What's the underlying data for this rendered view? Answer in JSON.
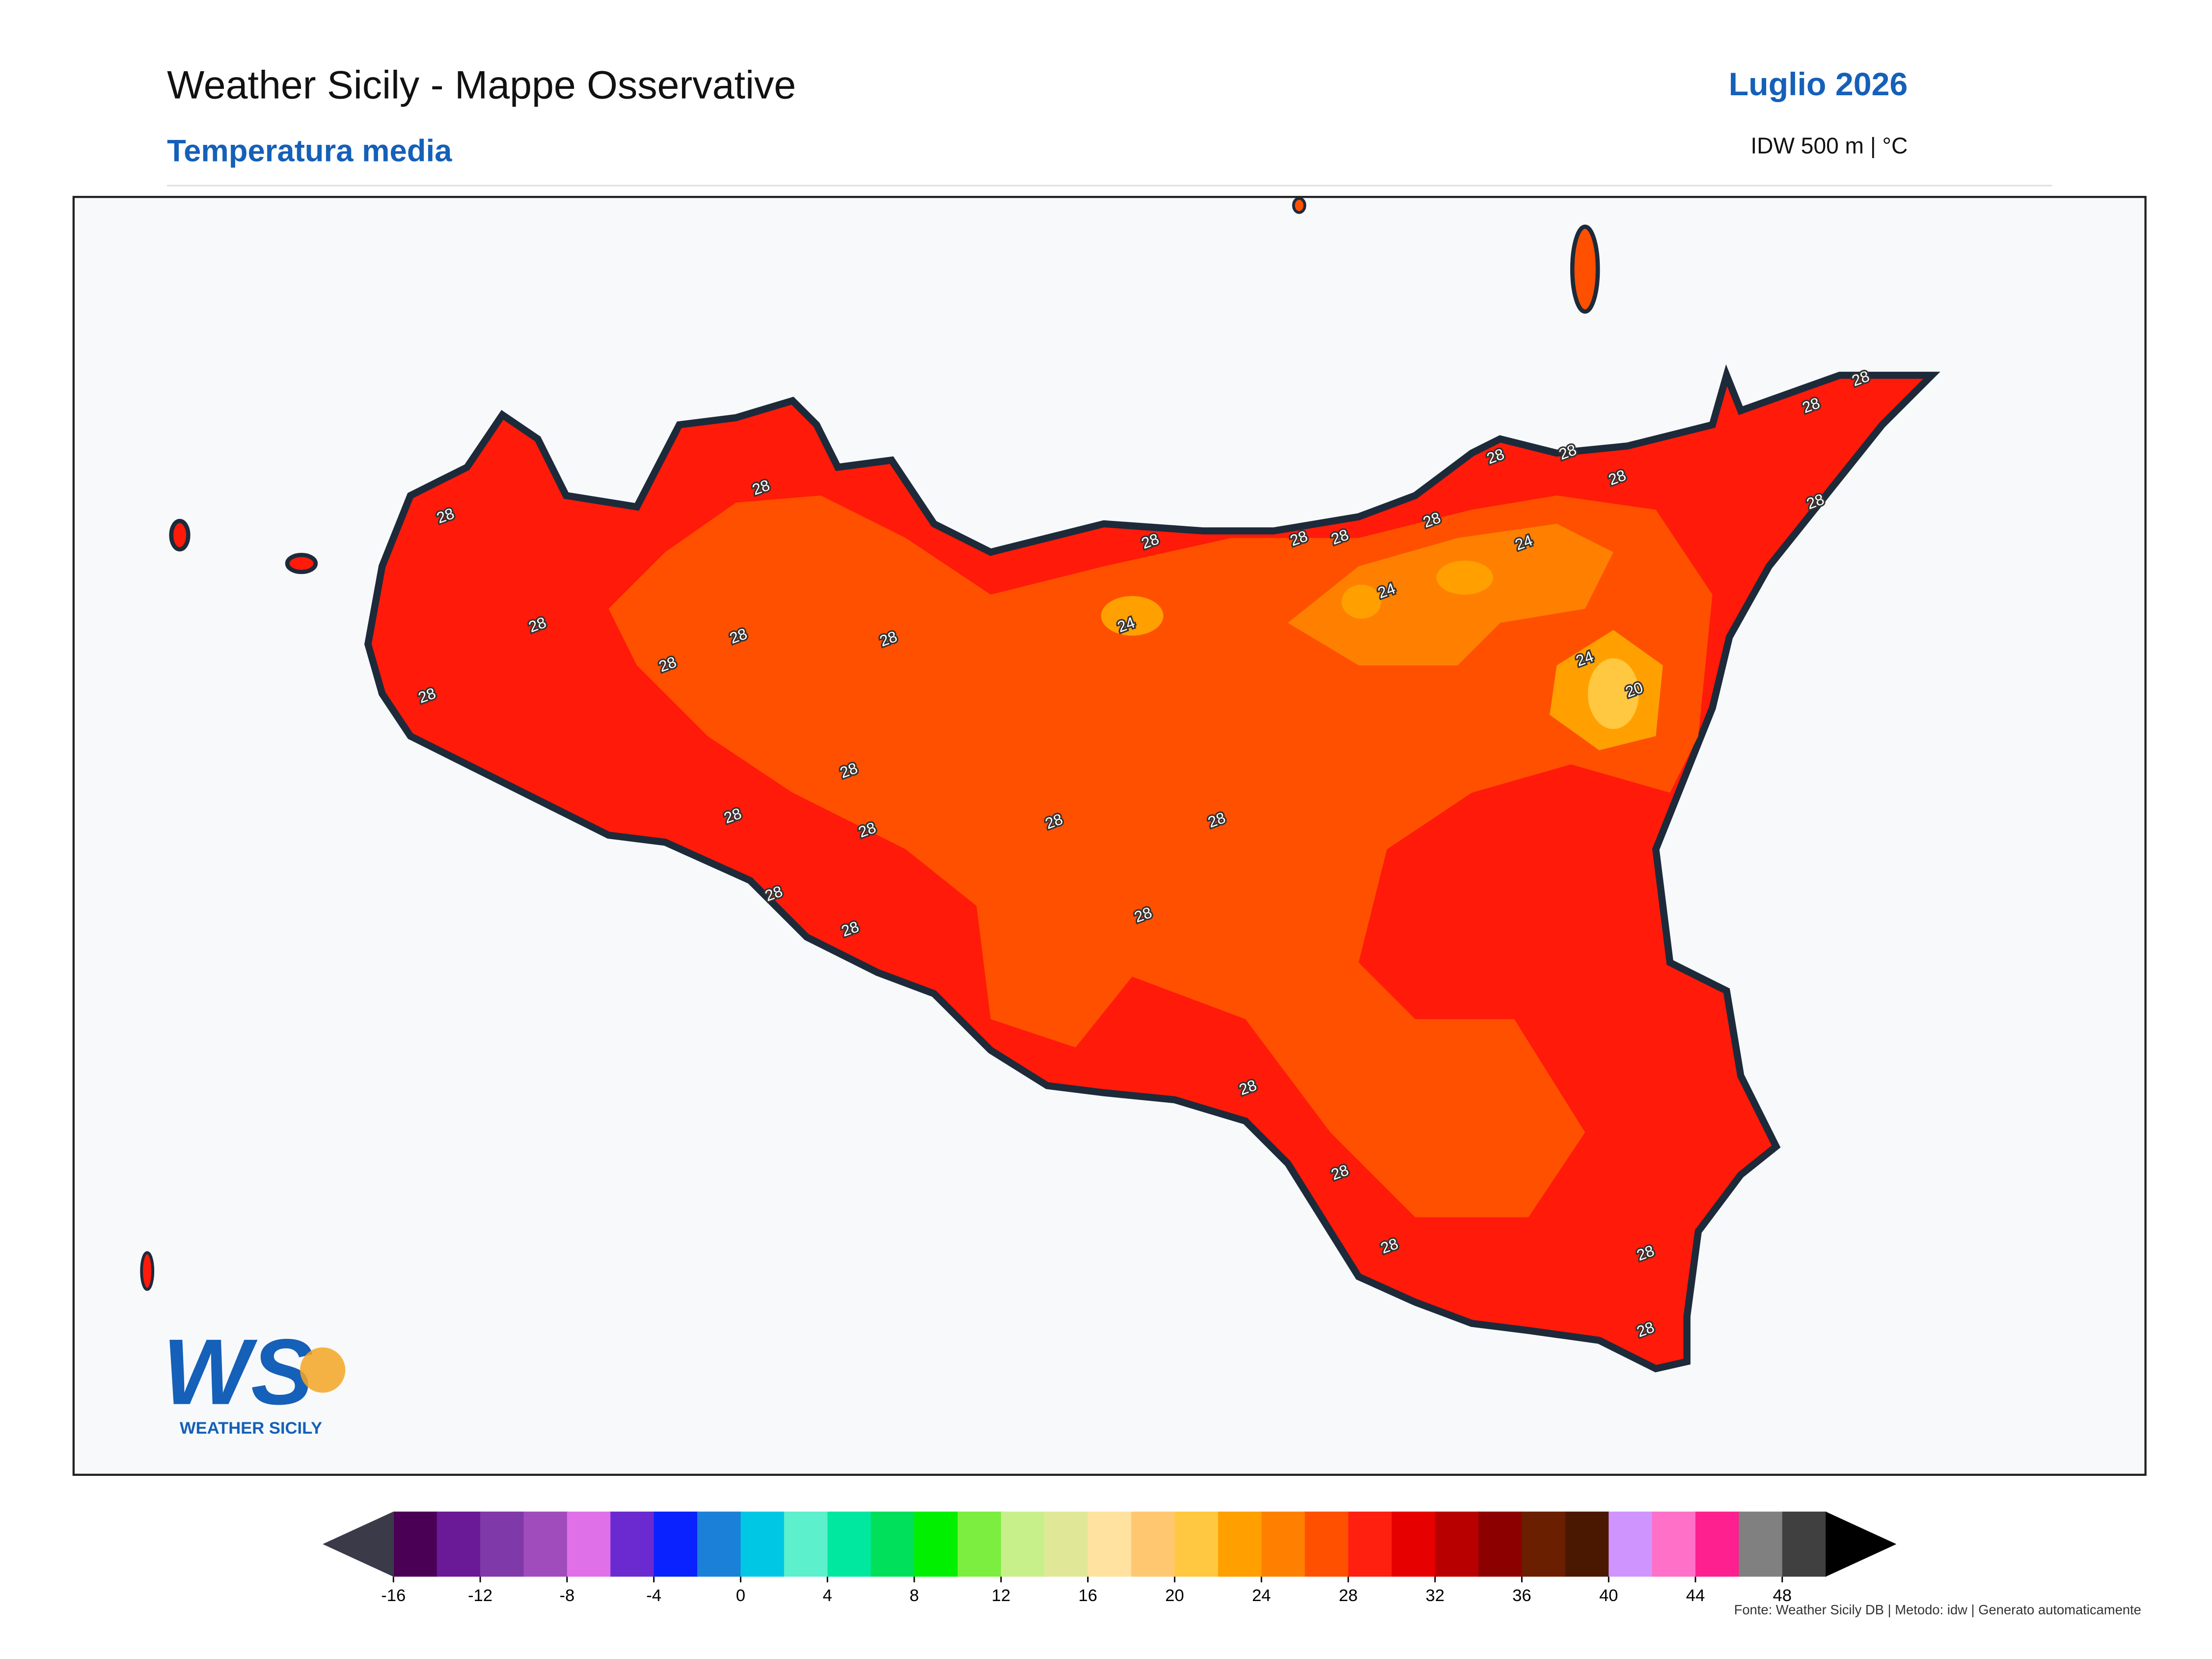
{
  "header": {
    "title": "Weather Sicily - Mappe Osservative",
    "subtitle": "Temperatura media",
    "period": "Luglio 2026",
    "method": "IDW 500 m | °C"
  },
  "map": {
    "contour_labels": [
      "28",
      "28",
      "28",
      "28",
      "28",
      "28",
      "28",
      "28",
      "28",
      "28",
      "28",
      "28",
      "28",
      "28",
      "28",
      "28",
      "28",
      "28",
      "28",
      "28",
      "28",
      "28",
      "28",
      "28",
      "28",
      "28",
      "28",
      "28",
      "28",
      "28",
      "24",
      "24",
      "24",
      "24",
      "20"
    ]
  },
  "logo": {
    "mark": "WS",
    "name": "WEATHER SICILY"
  },
  "colorbar": {
    "lim": [
      -16,
      50
    ],
    "ticks": [
      -16,
      -12,
      -8,
      -4,
      0,
      4,
      8,
      12,
      16,
      20,
      24,
      28,
      32,
      36,
      40,
      44,
      48
    ],
    "colors": [
      "#4a0054",
      "#6a1a96",
      "#8039a8",
      "#a04cbc",
      "#e070e8",
      "#6a2ad0",
      "#0a22ff",
      "#1a80d8",
      "#00c8e4",
      "#5cf0cc",
      "#00e8a0",
      "#00e05a",
      "#00f000",
      "#7cee40",
      "#c8f08a",
      "#e0e898",
      "#ffe2a0",
      "#ffc870",
      "#ffc840",
      "#ffa000",
      "#ff8000",
      "#ff5000",
      "#ff2010",
      "#e60000",
      "#b80000",
      "#8c0000",
      "#6a2000",
      "#4a1800",
      "#d094ff",
      "#ff70c8",
      "#ff2090",
      "#808080",
      "#404040"
    ],
    "under_color": "#3a3a48",
    "over_color": "#000000"
  },
  "footer": {
    "source": "Fonte: Weather Sicily DB | Metodo: idw | Generato automaticamente"
  }
}
